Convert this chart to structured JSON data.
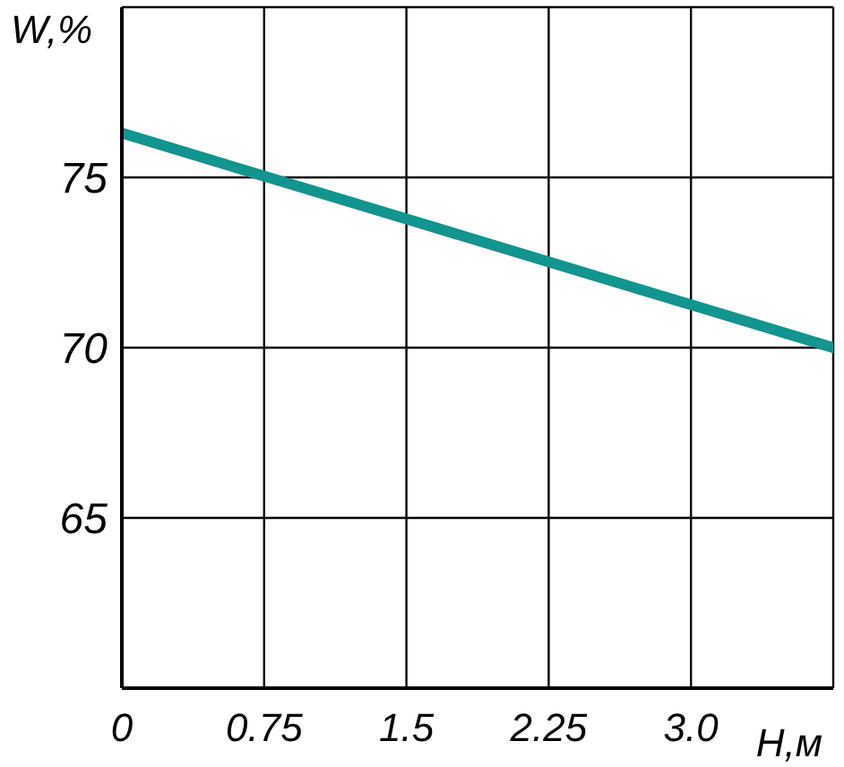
{
  "chart_data": {
    "type": "line",
    "xlabel": "Н,м",
    "ylabel": "W,%",
    "x": [
      0,
      3.75
    ],
    "series": [
      {
        "color": "#12948f",
        "values": [
          76.3,
          70
        ]
      }
    ],
    "xlim": [
      0,
      3.75
    ],
    "xticks": [
      0,
      0.75,
      1.5,
      2.25,
      {
        "value": 3,
        "label": "3.0"
      }
    ],
    "ylim": [
      60,
      80
    ],
    "yticks": [
      65,
      70,
      75
    ],
    "grid": true,
    "legend": false,
    "marker": "none",
    "line_style": "solid"
  }
}
